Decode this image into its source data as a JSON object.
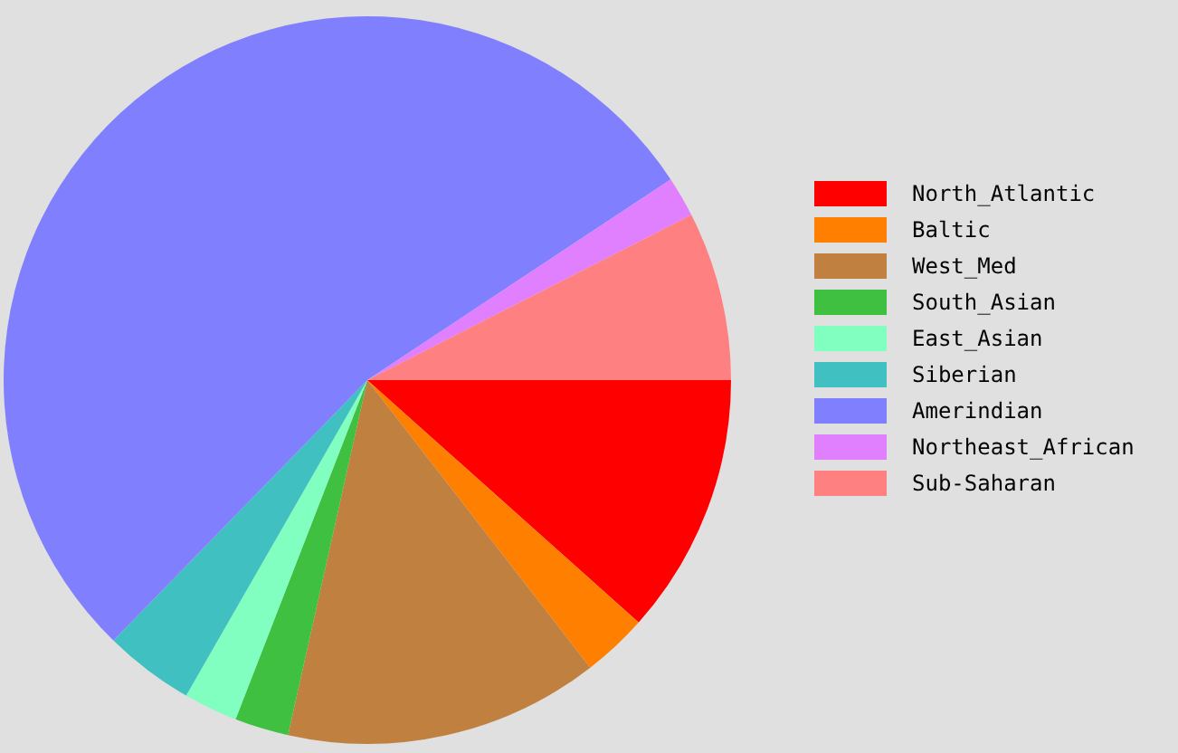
{
  "chart_data": {
    "type": "pie",
    "legend": "right",
    "categories": [
      "North_Atlantic",
      "Baltic",
      "West_Med",
      "South_Asian",
      "East_Asian",
      "Siberian",
      "Amerindian",
      "Northeast_African",
      "Sub-Saharan"
    ],
    "values": [
      11.6,
      2.9,
      14.0,
      2.4,
      2.4,
      4.0,
      53.4,
      1.8,
      7.5
    ],
    "colors": [
      "#ff0000",
      "#ff8000",
      "#c08040",
      "#40c040",
      "#80ffc0",
      "#40c0c0",
      "#8080ff",
      "#e080ff",
      "#ff8080"
    ]
  }
}
